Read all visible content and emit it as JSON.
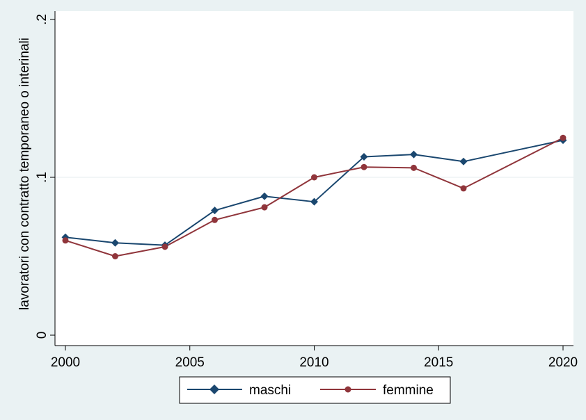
{
  "chart_data": {
    "type": "line",
    "title": "",
    "xlabel": "",
    "ylabel": "lavoratori con contratto temporaneo o interinali",
    "xlim": [
      2000,
      2020
    ],
    "ylim": [
      0,
      0.2
    ],
    "x_ticks": [
      {
        "value": 2000,
        "label": "2000"
      },
      {
        "value": 2005,
        "label": "2005"
      },
      {
        "value": 2010,
        "label": "2010"
      },
      {
        "value": 2015,
        "label": "2015"
      },
      {
        "value": 2020,
        "label": "2020"
      }
    ],
    "y_ticks": [
      {
        "value": 0,
        "label": "0"
      },
      {
        "value": 0.1,
        "label": ".1"
      },
      {
        "value": 0.2,
        "label": ".2"
      }
    ],
    "grid": "horizontal",
    "legend_position": "bottom",
    "x": [
      2000,
      2002,
      2004,
      2006,
      2008,
      2010,
      2012,
      2014,
      2016,
      2020
    ],
    "series": [
      {
        "name": "maschi",
        "color": "#1a476f",
        "marker": "diamond",
        "values": [
          0.062,
          0.0585,
          0.057,
          0.079,
          0.088,
          0.0845,
          0.113,
          0.1145,
          0.11,
          0.1235
        ]
      },
      {
        "name": "femmine",
        "color": "#90353b",
        "marker": "circle",
        "values": [
          0.06,
          0.05,
          0.056,
          0.073,
          0.081,
          0.1,
          0.1065,
          0.106,
          0.093,
          0.125
        ]
      }
    ]
  }
}
